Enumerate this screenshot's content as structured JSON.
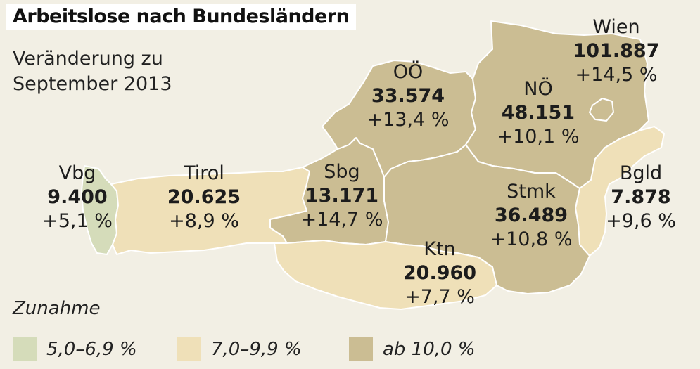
{
  "title": "Arbeitslose nach Bundesländern",
  "subtitle_line1": "Veränderung zu",
  "subtitle_line2": "September 2013",
  "colors": {
    "low": "#d5dcba",
    "mid": "#efe0b8",
    "high": "#cbbd93",
    "border": "#ffffff",
    "background": "#f2efe4"
  },
  "regions": {
    "vbg": {
      "name": "Vbg",
      "count": "9.400",
      "change": "+5,1 %",
      "class": "low"
    },
    "tirol": {
      "name": "Tirol",
      "count": "20.625",
      "change": "+8,9 %",
      "class": "mid"
    },
    "sbg": {
      "name": "Sbg",
      "count": "13.171",
      "change": "+14,7 %",
      "class": "high"
    },
    "ooe": {
      "name": "OÖ",
      "count": "33.574",
      "change": "+13,4 %",
      "class": "high"
    },
    "noe": {
      "name": "NÖ",
      "count": "48.151",
      "change": "+10,1 %",
      "class": "high"
    },
    "wien": {
      "name": "Wien",
      "count": "101.887",
      "change": "+14,5 %",
      "class": "high"
    },
    "bgld": {
      "name": "Bgld",
      "count": "7.878",
      "change": "+9,6 %",
      "class": "mid"
    },
    "stmk": {
      "name": "Stmk",
      "count": "36.489",
      "change": "+10,8 %",
      "class": "high"
    },
    "ktn": {
      "name": "Ktn",
      "count": "20.960",
      "change": "+7,7 %",
      "class": "mid"
    }
  },
  "legend": {
    "title": "Zunahme",
    "items": [
      {
        "label": "5,0–6,9 %",
        "class": "low"
      },
      {
        "label": "7,0–9,9 %",
        "class": "mid"
      },
      {
        "label": "ab 10,0 %",
        "class": "high"
      }
    ]
  }
}
